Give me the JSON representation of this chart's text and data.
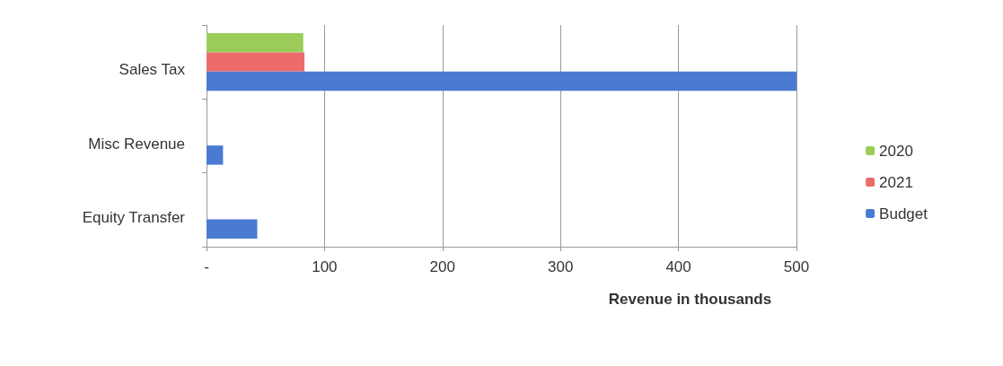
{
  "chart_data": {
    "type": "bar",
    "orientation": "horizontal",
    "xlabel": "Revenue in thousands",
    "categories": [
      "Sales Tax",
      "Misc Revenue",
      "Equity Transfer"
    ],
    "series": [
      {
        "name": "2020",
        "color": "#9bcc5a",
        "values": [
          82,
          null,
          null
        ]
      },
      {
        "name": "2021",
        "color": "#ec6b6b",
        "values": [
          83,
          null,
          null
        ]
      },
      {
        "name": "Budget",
        "color": "#4a7bd3",
        "values": [
          500,
          14,
          43
        ]
      }
    ],
    "xlim": [
      0,
      500
    ],
    "xticks": [
      {
        "value": 0,
        "label": "-"
      },
      100,
      200,
      300,
      400,
      500
    ],
    "grid": "x",
    "legend": "right"
  }
}
